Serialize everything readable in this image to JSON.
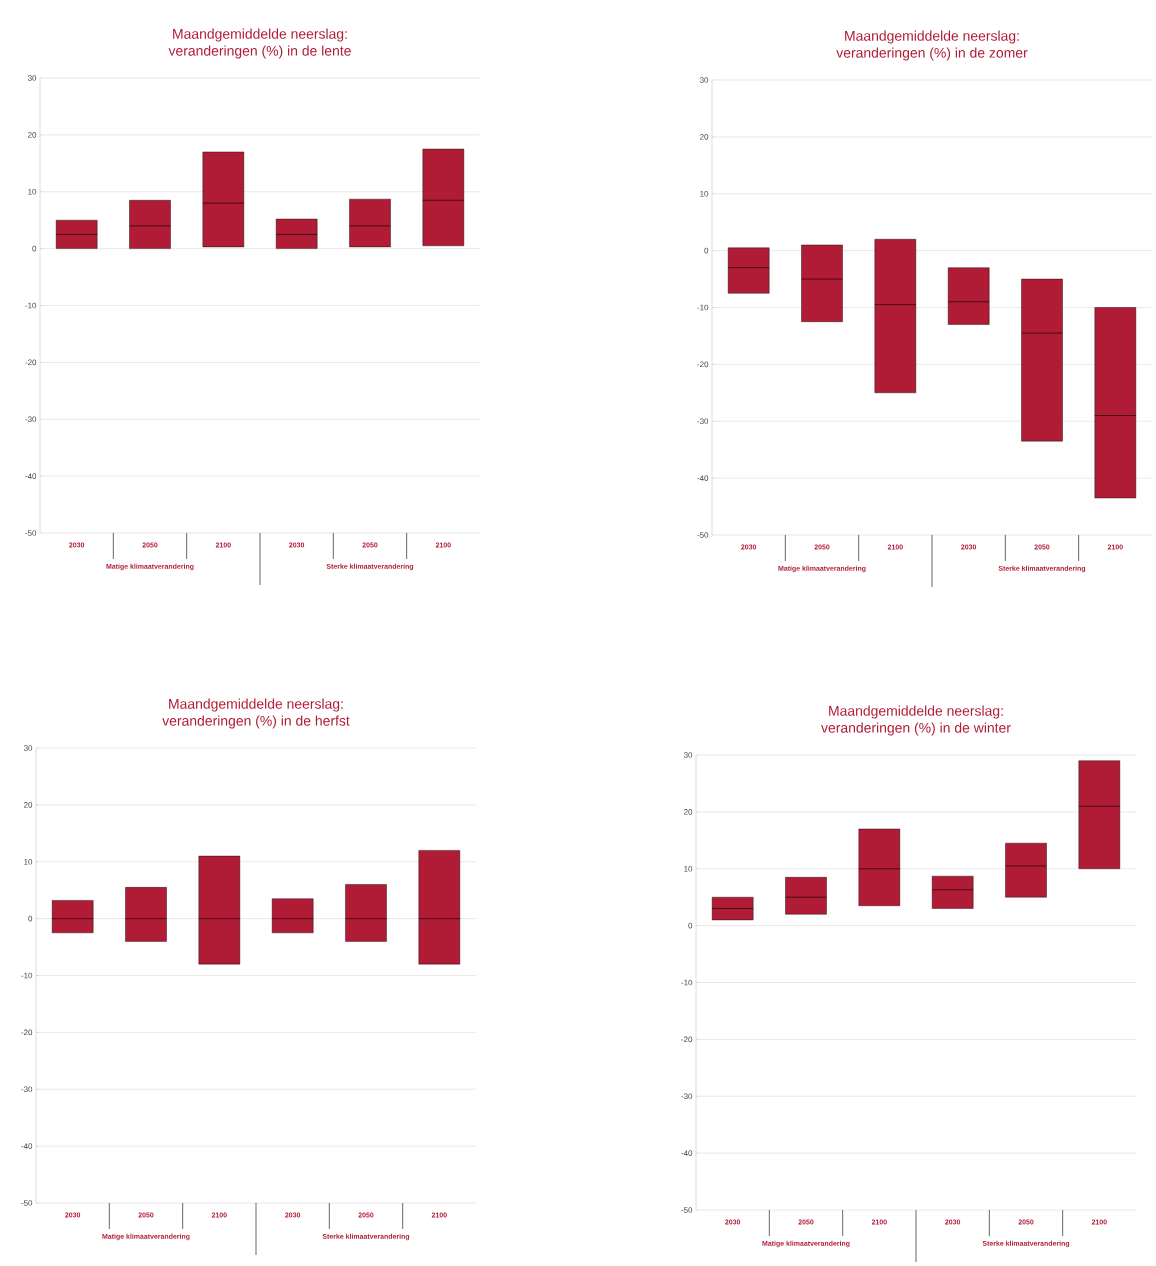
{
  "chart_data": [
    {
      "type": "box",
      "title": "Maandgemiddelde neerslag:",
      "subtitle": "veranderingen (%) in de lente",
      "categories": [
        "2030",
        "2050",
        "2100",
        "2030",
        "2050",
        "2100"
      ],
      "color": "#b01c35",
      "ylim": [
        -50,
        30
      ],
      "yticks": [
        -50,
        -40,
        -30,
        -20,
        -10,
        0,
        10,
        20,
        30
      ],
      "grid": "y",
      "annotations": [
        "Matige klimaatverandering",
        "Sterke klimaatverandering"
      ],
      "boxes": [
        {
          "low": 0,
          "q1": 0,
          "median": 2.5,
          "q3": 5,
          "high": 5
        },
        {
          "low": 0,
          "q1": 0,
          "median": 4,
          "q3": 8.5,
          "high": 8.5
        },
        {
          "low": 0.3,
          "q1": 0.3,
          "median": 8,
          "q3": 17,
          "high": 17
        },
        {
          "low": 0,
          "q1": 0,
          "median": 2.5,
          "q3": 5.2,
          "high": 5.2
        },
        {
          "low": 0.3,
          "q1": 0.3,
          "median": 4,
          "q3": 8.7,
          "high": 8.7
        },
        {
          "low": 0.5,
          "q1": 0.5,
          "median": 8.5,
          "q3": 17.5,
          "high": 17.5
        }
      ]
    },
    {
      "type": "box",
      "title": "Maandgemiddelde neerslag:",
      "subtitle": "veranderingen (%) in de zomer",
      "categories": [
        "2030",
        "2050",
        "2100",
        "2030",
        "2050",
        "2100"
      ],
      "color": "#b01c35",
      "ylim": [
        -50,
        30
      ],
      "yticks": [
        -50,
        -40,
        -30,
        -20,
        -10,
        0,
        10,
        20,
        30
      ],
      "grid": "y",
      "annotations": [
        "Matige klimaatverandering",
        "Sterke klimaatverandering"
      ],
      "boxes": [
        {
          "low": -7.5,
          "q1": -7.5,
          "median": -3,
          "q3": 0.5,
          "high": 0.5
        },
        {
          "low": -12.5,
          "q1": -12.5,
          "median": -5,
          "q3": 1,
          "high": 1
        },
        {
          "low": -25,
          "q1": -25,
          "median": -9.5,
          "q3": 2,
          "high": 2
        },
        {
          "low": -13,
          "q1": -13,
          "median": -9,
          "q3": -3,
          "high": -3
        },
        {
          "low": -33.5,
          "q1": -33.5,
          "median": -14.5,
          "q3": -5,
          "high": -5
        },
        {
          "low": -43.5,
          "q1": -43.5,
          "median": -29,
          "q3": -10,
          "high": -10
        }
      ]
    },
    {
      "type": "box",
      "title": "Maandgemiddelde neerslag:",
      "subtitle": "veranderingen (%) in de herfst",
      "categories": [
        "2030",
        "2050",
        "2100",
        "2030",
        "2050",
        "2100"
      ],
      "color": "#b01c35",
      "ylim": [
        -50,
        30
      ],
      "yticks": [
        -50,
        -40,
        -30,
        -20,
        -10,
        0,
        10,
        20,
        30
      ],
      "grid": "y",
      "annotations": [
        "Matige klimaatverandering",
        "Sterke klimaatverandering"
      ],
      "boxes": [
        {
          "low": -2.5,
          "q1": -2.5,
          "median": 0,
          "q3": 3.2,
          "high": 3.2
        },
        {
          "low": -4,
          "q1": -4,
          "median": 0,
          "q3": 5.5,
          "high": 5.5
        },
        {
          "low": -8,
          "q1": -8,
          "median": 0,
          "q3": 11,
          "high": 11
        },
        {
          "low": -2.5,
          "q1": -2.5,
          "median": 0,
          "q3": 3.5,
          "high": 3.5
        },
        {
          "low": -4,
          "q1": -4,
          "median": 0,
          "q3": 6,
          "high": 6
        },
        {
          "low": -8,
          "q1": -8,
          "median": 0,
          "q3": 12,
          "high": 12
        }
      ]
    },
    {
      "type": "box",
      "title": "Maandgemiddelde neerslag:",
      "subtitle": "veranderingen (%) in de winter",
      "categories": [
        "2030",
        "2050",
        "2100",
        "2030",
        "2050",
        "2100"
      ],
      "color": "#b01c35",
      "ylim": [
        -50,
        30
      ],
      "yticks": [
        -50,
        -40,
        -30,
        -20,
        -10,
        0,
        10,
        20,
        30
      ],
      "grid": "y",
      "annotations": [
        "Matige klimaatverandering",
        "Sterke klimaatverandering"
      ],
      "boxes": [
        {
          "low": 1,
          "q1": 1,
          "median": 3,
          "q3": 5,
          "high": 5
        },
        {
          "low": 2,
          "q1": 2,
          "median": 5,
          "q3": 8.5,
          "high": 8.5
        },
        {
          "low": 3.5,
          "q1": 3.5,
          "median": 10,
          "q3": 17,
          "high": 17
        },
        {
          "low": 3,
          "q1": 3,
          "median": 6.3,
          "q3": 8.7,
          "high": 8.7
        },
        {
          "low": 5,
          "q1": 5,
          "median": 10.5,
          "q3": 14.5,
          "high": 14.5
        },
        {
          "low": 10,
          "q1": 10,
          "median": 21,
          "q3": 29,
          "high": 29
        }
      ]
    }
  ]
}
